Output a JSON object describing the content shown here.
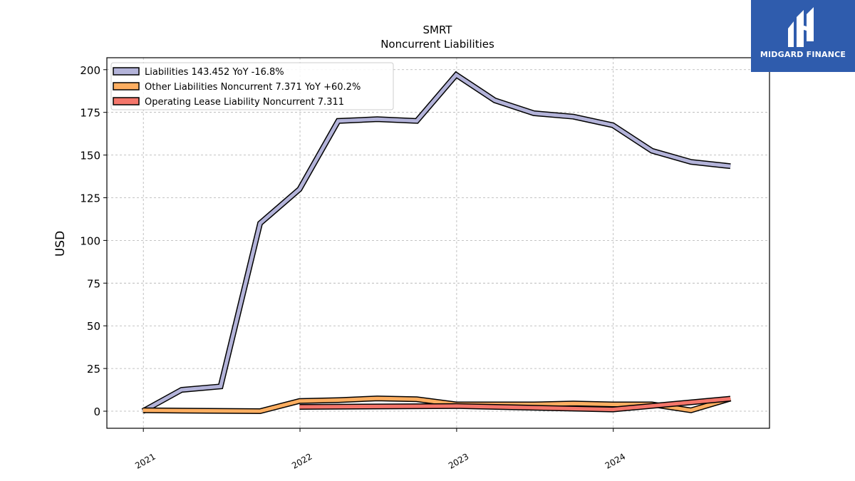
{
  "brand": {
    "name": "MIDGARD FINANCE",
    "bg": "#2f5cad",
    "icon": "midgard-logo-icon"
  },
  "chart_data": {
    "type": "line",
    "title": "SMRT",
    "subtitle": "Noncurrent  Liabilities",
    "ylabel": "USD",
    "xlabel": "",
    "ylim": [
      -10,
      207
    ],
    "xlim": [
      "2020-10-08",
      "2024-12-30"
    ],
    "yticks": [
      0,
      25,
      50,
      75,
      100,
      125,
      150,
      175,
      200
    ],
    "xticks": [
      {
        "label": "2021",
        "date": "2021-01-01"
      },
      {
        "label": "2022",
        "date": "2022-01-01"
      },
      {
        "label": "2023",
        "date": "2023-01-01"
      },
      {
        "label": "2024",
        "date": "2024-01-01"
      }
    ],
    "grid": true,
    "legend_position": "top-left",
    "series": [
      {
        "name": "Liabilities  143.452 YoY -16.8%",
        "color": "#b3b3d9",
        "points": [
          [
            "2020-12-31",
            0
          ],
          [
            "2021-03-31",
            12.5
          ],
          [
            "2021-06-30",
            14.5
          ],
          [
            "2021-09-30",
            110
          ],
          [
            "2021-12-31",
            130
          ],
          [
            "2022-03-31",
            170
          ],
          [
            "2022-06-30",
            171
          ],
          [
            "2022-09-30",
            170
          ],
          [
            "2022-12-31",
            197
          ],
          [
            "2023-03-31",
            182
          ],
          [
            "2023-06-30",
            174.5
          ],
          [
            "2023-09-30",
            172.5
          ],
          [
            "2023-12-31",
            167.5
          ],
          [
            "2024-03-31",
            152.5
          ],
          [
            "2024-06-30",
            146
          ],
          [
            "2024-09-30",
            143.5
          ]
        ]
      },
      {
        "name": "Other Liabilities Noncurrent  7.371 YoY +60.2%",
        "color": "#fdae61",
        "points": [
          [
            "2020-12-31",
            0.5
          ],
          [
            "2021-09-30",
            0
          ],
          [
            "2021-12-31",
            6
          ],
          [
            "2022-03-31",
            6.5
          ],
          [
            "2022-06-30",
            7.5
          ],
          [
            "2022-09-30",
            7
          ],
          [
            "2022-12-31",
            4
          ],
          [
            "2023-03-31",
            4
          ],
          [
            "2023-06-30",
            4
          ],
          [
            "2023-09-30",
            4.5
          ],
          [
            "2023-12-31",
            4
          ],
          [
            "2024-03-31",
            4
          ],
          [
            "2024-06-30",
            0.5
          ],
          [
            "2024-09-30",
            7.371
          ]
        ]
      },
      {
        "name": "Operating Lease Liability Noncurrent  7.311",
        "color": "#f4766b",
        "points": [
          [
            "2021-12-31",
            2.5
          ],
          [
            "2022-12-31",
            3
          ],
          [
            "2023-12-31",
            1
          ],
          [
            "2024-09-30",
            7.311
          ]
        ]
      }
    ]
  }
}
